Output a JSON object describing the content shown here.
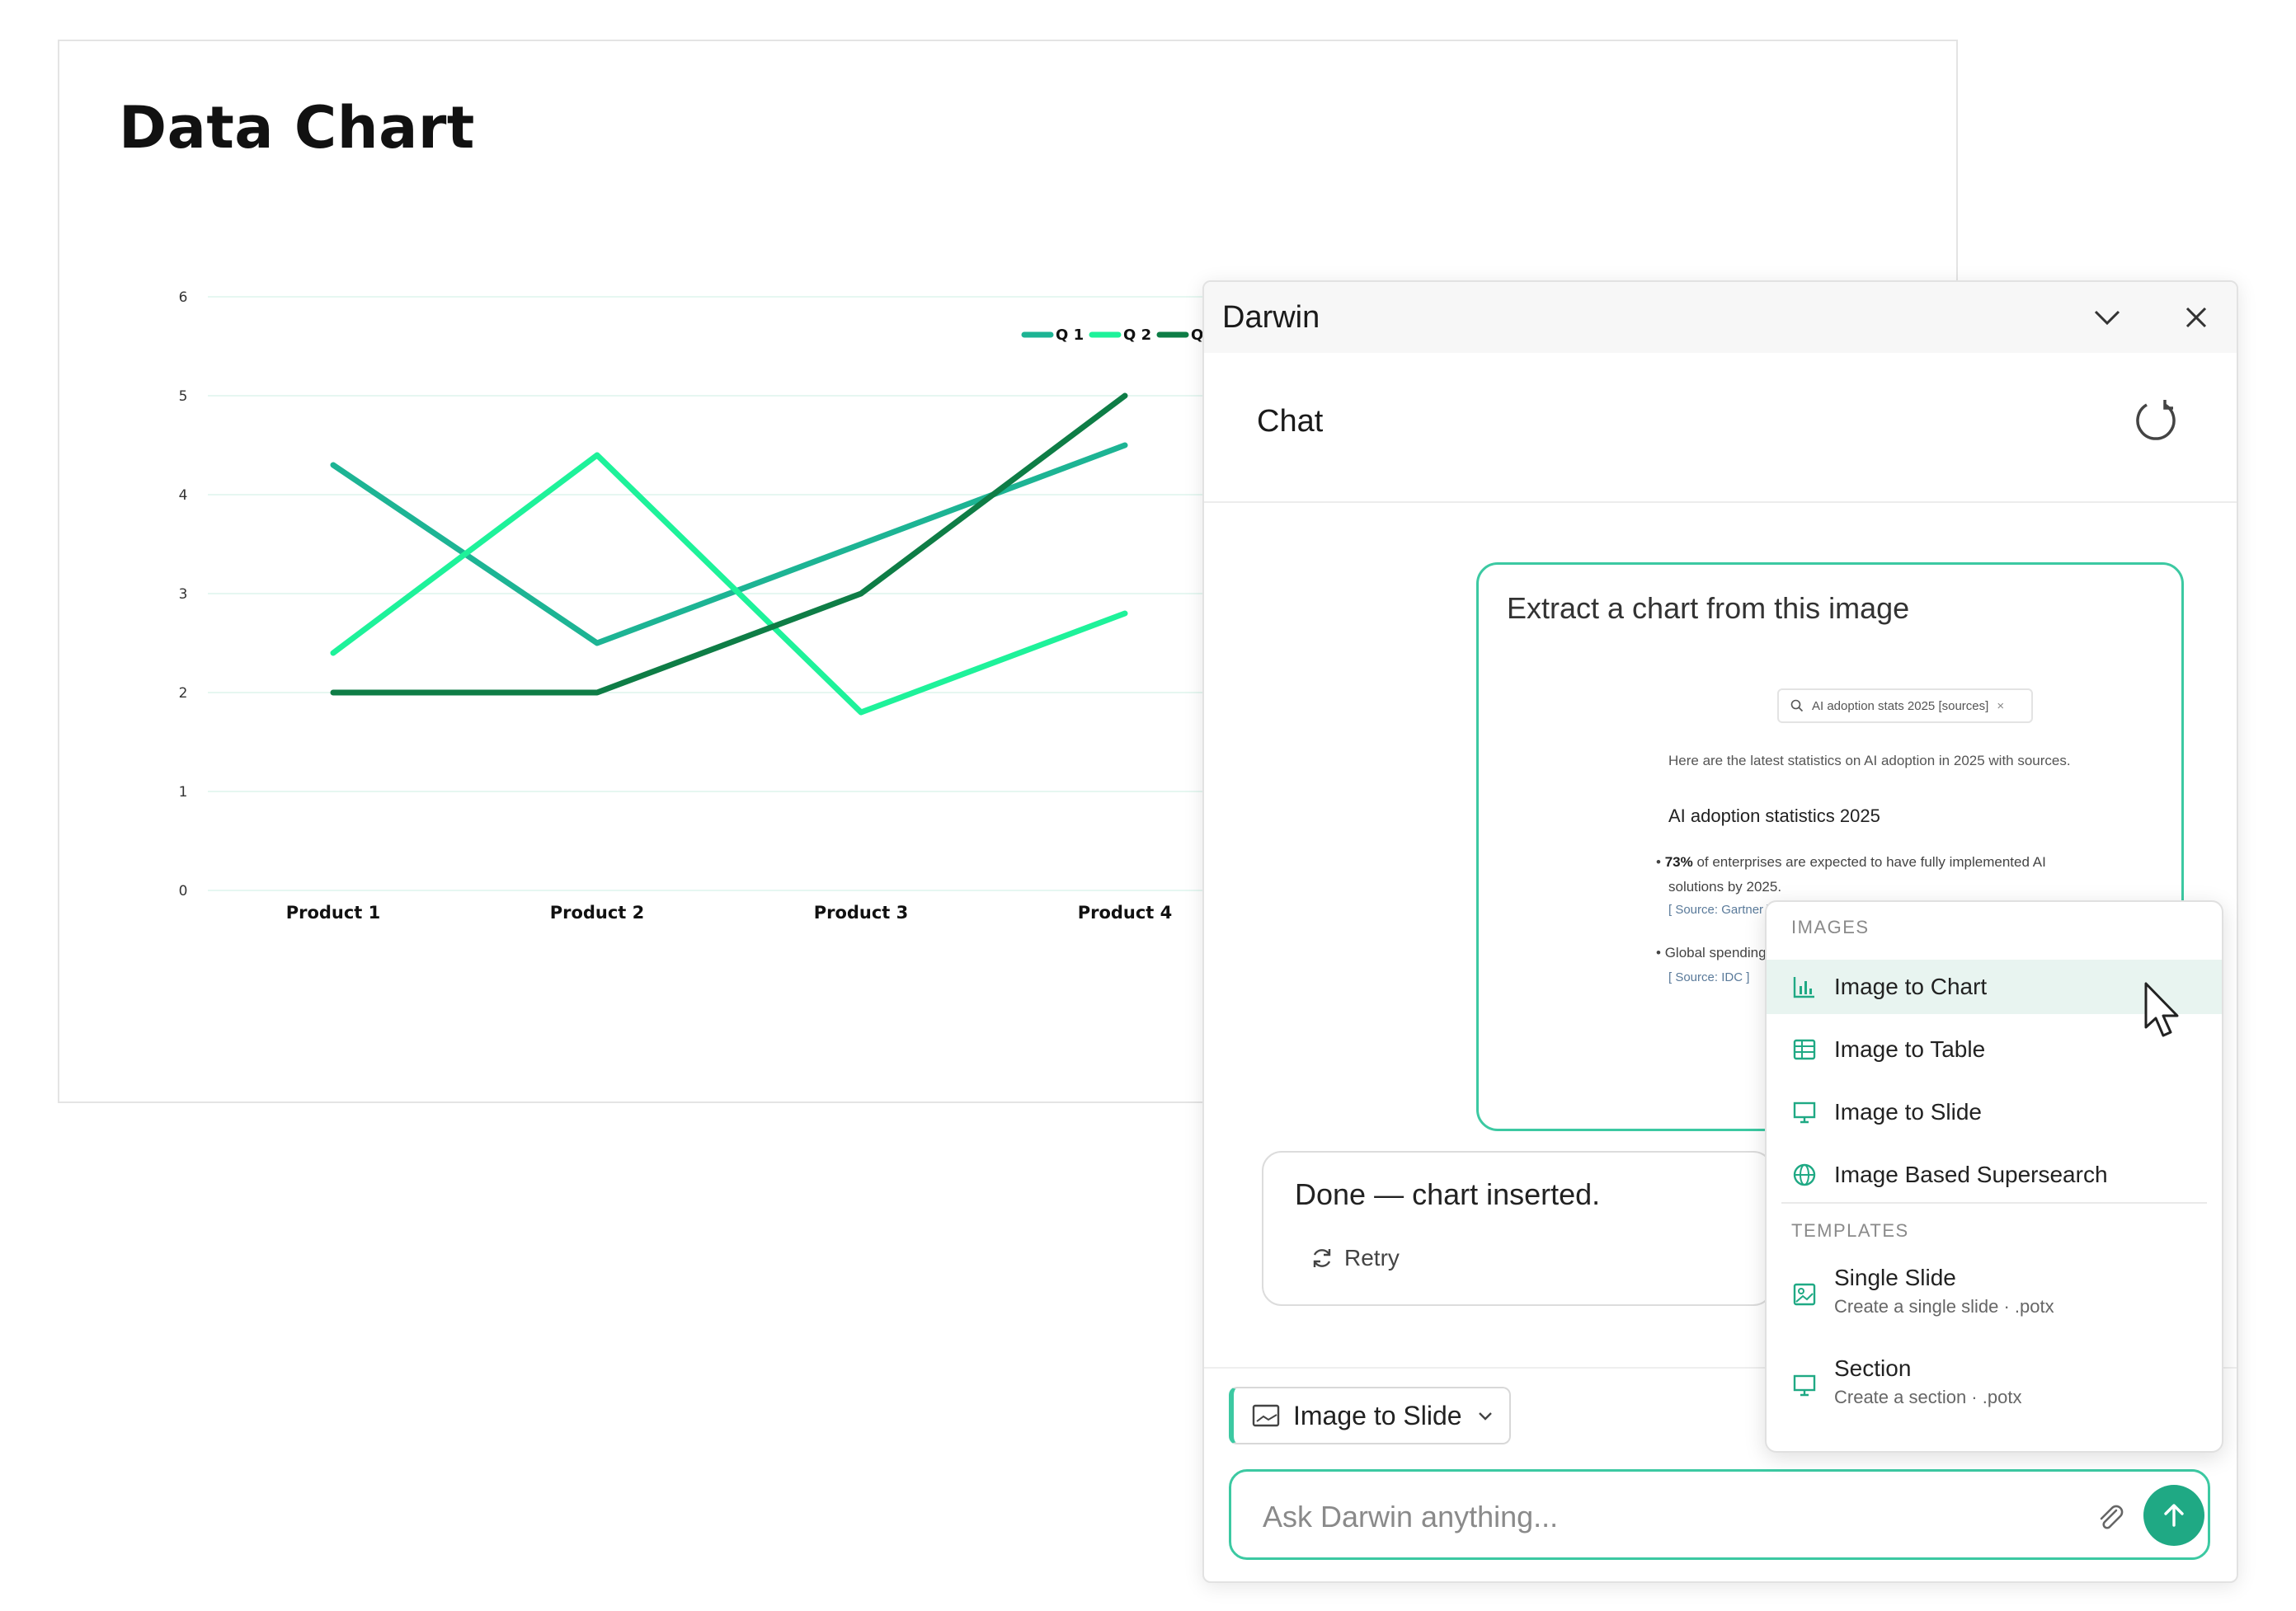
{
  "slide": {
    "title": "Data Chart"
  },
  "chart_data": {
    "type": "line",
    "categories": [
      "Product 1",
      "Product 2",
      "Product 3",
      "Product 4"
    ],
    "series": [
      {
        "name": "Q 1",
        "values": [
          4.3,
          2.5,
          3.5,
          4.5
        ],
        "color": "#1db494"
      },
      {
        "name": "Q 2",
        "values": [
          2.4,
          4.4,
          1.8,
          2.8
        ],
        "color": "#1ef29a"
      },
      {
        "name": "Q",
        "values": [
          2.0,
          2.0,
          3.0,
          5.0
        ],
        "color": "#0e7d46"
      }
    ],
    "yticks": [
      "0",
      "1",
      "2",
      "3",
      "4",
      "5",
      "6"
    ],
    "ylim": [
      0,
      6
    ],
    "legend": "top-right",
    "grid": true
  },
  "panel": {
    "title": "Darwin",
    "chat_label": "Chat",
    "user_message": "Extract a chart from this image",
    "attachment": {
      "search_text": "AI adoption stats 2025 [sources]",
      "intro": "Here are the latest statistics on AI adoption in 2025 with sources.",
      "heading": "AI adoption statistics 2025",
      "bullet1_bold": "73%",
      "bullet1_rest": " of enterprises are expected to have fully implemented AI",
      "bullet1_line2": "solutions by 2025.",
      "bullet1_source": "[ Source: Gartner ]",
      "bullet2": "Global spending on AI i",
      "bullet2_source": "[ Source: IDC ]"
    },
    "bot_message": "Done — chart inserted.",
    "retry_label": "Retry",
    "mode_chip_label": "Image to Slide",
    "input_placeholder": "Ask Darwin anything..."
  },
  "menu": {
    "images_header": "IMAGES",
    "items": [
      {
        "label": "Image to Chart",
        "icon": "bar-chart-icon"
      },
      {
        "label": "Image to Table",
        "icon": "table-icon"
      },
      {
        "label": "Image to Slide",
        "icon": "presentation-icon"
      },
      {
        "label": "Image Based Supersearch",
        "icon": "globe-icon"
      }
    ],
    "templates_header": "TEMPLATES",
    "templates": [
      {
        "title": "Single Slide",
        "subtitle": "Create a single slide · .potx",
        "icon": "image-icon"
      },
      {
        "title": "Section",
        "subtitle": "Create a section · .potx",
        "icon": "presentation-icon"
      }
    ]
  },
  "colors": {
    "accent": "#3cc9a2",
    "send_button": "#1fa984",
    "menu_highlight": "#e8f4f0"
  }
}
